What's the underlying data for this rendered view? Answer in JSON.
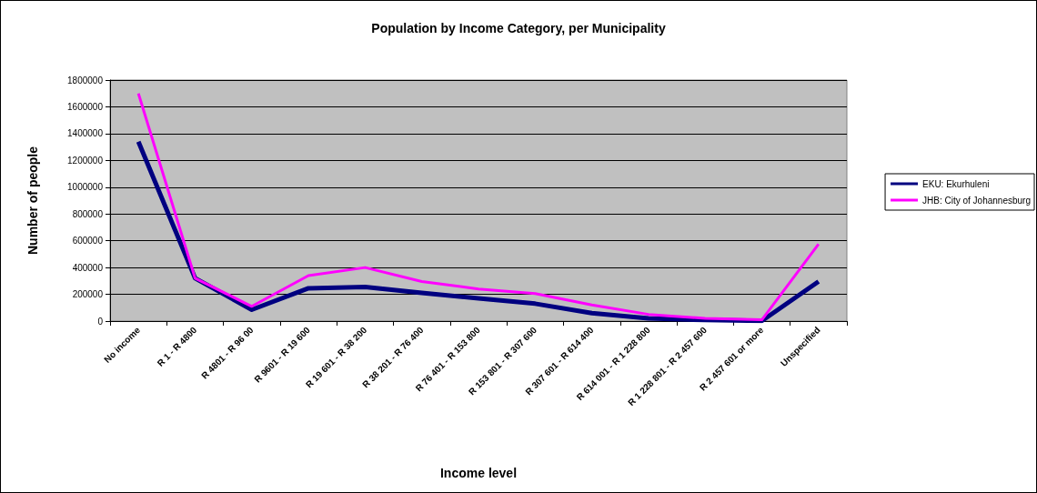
{
  "chart_data": {
    "type": "line",
    "title": "Population by Income Category, per Municipality",
    "xlabel": "Income level",
    "ylabel": "Number of people",
    "categories": [
      "No income",
      "R 1 - R 4800",
      "R 4801 - R 96 00",
      "R 9601 - R 19 600",
      "R 19 601 - R 38 200",
      "R 38 201 - R 76 400",
      "R 76 401 - R 153 800",
      "R 153 801 - R 307 600",
      "R 307 601 - R 614 400",
      "R 614 001 - R 1 228 800",
      "R 1 228 801 - R 2 457 600",
      "R 2 457 601 or more",
      "Unspecified"
    ],
    "series": [
      {
        "name": "EKU: Ekurhuleni",
        "color": "#000080",
        "values": [
          1340000,
          320000,
          85000,
          245000,
          255000,
          210000,
          170000,
          130000,
          60000,
          20000,
          8000,
          2000,
          295000
        ]
      },
      {
        "name": "JHB: City of Johannesburg",
        "color": "#ff00ff",
        "values": [
          1700000,
          320000,
          110000,
          340000,
          400000,
          295000,
          240000,
          205000,
          120000,
          50000,
          20000,
          10000,
          575000
        ]
      }
    ],
    "ylim": [
      0,
      1800000
    ],
    "yticks": [
      0,
      200000,
      400000,
      600000,
      800000,
      1000000,
      1200000,
      1400000,
      1600000,
      1800000
    ],
    "grid": "y",
    "legend": "right",
    "marker": "none",
    "line_style": "solid"
  }
}
